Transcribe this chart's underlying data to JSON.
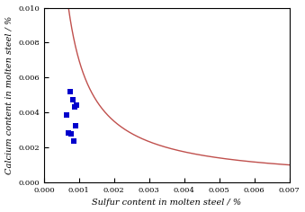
{
  "title": "",
  "xlabel": "Sulfur content in molten steel / %",
  "ylabel": "Calcium content in molten steel / %",
  "xlim": [
    0.0,
    0.007
  ],
  "ylim": [
    0.0,
    0.01
  ],
  "xticks": [
    0.0,
    0.001,
    0.002,
    0.003,
    0.004,
    0.005,
    0.006,
    0.007
  ],
  "yticks": [
    0.0,
    0.002,
    0.004,
    0.006,
    0.008,
    0.01
  ],
  "curve_color": "#c0504d",
  "scatter_color": "#0000cc",
  "scatter_x": [
    0.00075,
    0.00082,
    0.00088,
    0.00065,
    0.0007,
    0.0009,
    0.00078,
    0.00085,
    0.00092
  ],
  "scatter_y": [
    0.0052,
    0.00475,
    0.0043,
    0.00385,
    0.00285,
    0.00325,
    0.0028,
    0.00235,
    0.0044
  ],
  "curve_k": 7e-06,
  "marker_size": 18,
  "font_size_label": 7,
  "font_size_tick": 6
}
